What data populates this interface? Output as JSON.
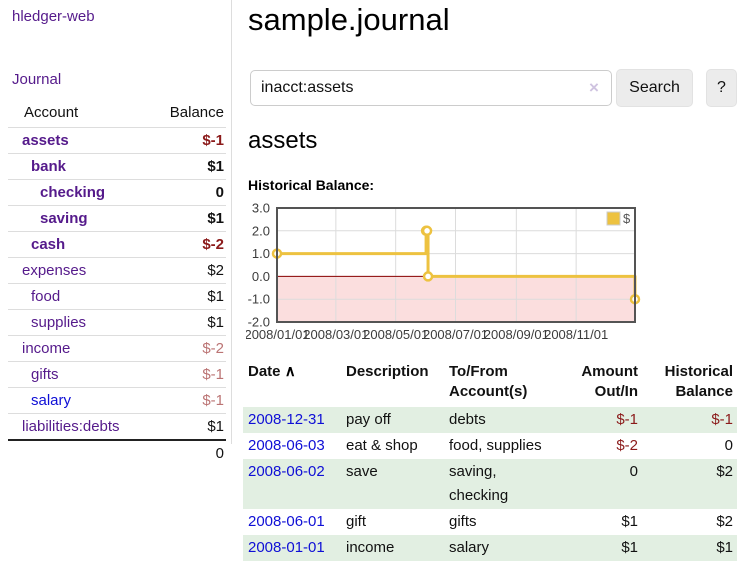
{
  "app": {
    "brand": "hledger-web",
    "nav_journal": "Journal"
  },
  "colors": {
    "link_purple": "#551a8b",
    "link_blue": "#0f0fd6",
    "negative": "#8b1a1a",
    "negative_soft": "#bb7474",
    "row_stripe_green": "#e2efe2",
    "series_gold": "#edc240",
    "below_zero_fill": "#fbdede",
    "zero_line": "#8b0000",
    "grid": "#dcdcdc",
    "plot_border": "#545454"
  },
  "sidebar": {
    "header": {
      "account": "Account",
      "balance": "Balance"
    },
    "accounts": [
      {
        "name": "assets",
        "balance": "$-1"
      },
      {
        "name": "bank",
        "balance": "$1"
      },
      {
        "name": "checking",
        "balance": "0"
      },
      {
        "name": "saving",
        "balance": "$1"
      },
      {
        "name": "cash",
        "balance": "$-2"
      },
      {
        "name": "expenses",
        "balance": "$2"
      },
      {
        "name": "food",
        "balance": "$1"
      },
      {
        "name": "supplies",
        "balance": "$1"
      },
      {
        "name": "income",
        "balance": "$-2"
      },
      {
        "name": "gifts",
        "balance": "$-1"
      },
      {
        "name": "salary",
        "balance": "$-1"
      },
      {
        "name": "liabilities:debts",
        "balance": "$1"
      }
    ],
    "total": "0"
  },
  "header": {
    "title": "sample.journal"
  },
  "search": {
    "value": "inacct:assets",
    "clear_icon": "×",
    "button_label": "Search",
    "help_label": "?"
  },
  "register": {
    "heading": "assets",
    "chart_label": "Historical Balance:"
  },
  "chart_data": {
    "type": "line",
    "title": "Historical Balance",
    "x_range": [
      "2008/01/01",
      "2008/12/31"
    ],
    "ylim": [
      -2.0,
      3.0
    ],
    "y_ticks": [
      "3.0",
      "2.0",
      "1.0",
      "0.0",
      "-1.0",
      "-2.0"
    ],
    "x_ticks": [
      "2008/01/01",
      "2008/03/01",
      "2008/05/01",
      "2008/07/01",
      "2008/09/01",
      "2008/11/01"
    ],
    "legend": [
      {
        "name": "$",
        "color": "#edc240"
      }
    ],
    "series": [
      {
        "name": "$",
        "color": "#edc240",
        "step": true,
        "points": [
          {
            "x": "2008/01/01",
            "y": 1
          },
          {
            "x": "2008/06/01",
            "y": 2
          },
          {
            "x": "2008/06/02",
            "y": 2
          },
          {
            "x": "2008/06/03",
            "y": 0
          },
          {
            "x": "2008/12/31",
            "y": -1
          }
        ]
      }
    ],
    "grid": true,
    "legend_position": "top-right",
    "marking_below_zero": true
  },
  "reg_table": {
    "sort_icon": "∧",
    "columns": {
      "date": {
        "l1": "Date",
        "l2": ""
      },
      "desc": {
        "l1": "Description",
        "l2": ""
      },
      "acct": {
        "l1": "To/From",
        "l2": "Account(s)"
      },
      "amt": {
        "l1": "Amount",
        "l2": "Out/In"
      },
      "bal": {
        "l1": "Historical",
        "l2": "Balance"
      }
    },
    "rows": [
      {
        "date": "2008-12-31",
        "desc": "pay off",
        "acct": "debts",
        "acct2": "",
        "amt": "$-1",
        "bal": "$-1"
      },
      {
        "date": "2008-06-03",
        "desc": "eat & shop",
        "acct": "food, supplies",
        "acct2": "",
        "amt": "$-2",
        "bal": "0"
      },
      {
        "date": "2008-06-02",
        "desc": "save",
        "acct": "saving,",
        "acct2": "checking",
        "amt": "0",
        "bal": "$2"
      },
      {
        "date": "2008-06-01",
        "desc": "gift",
        "acct": "gifts",
        "acct2": "",
        "amt": "$1",
        "bal": "$2"
      },
      {
        "date": "2008-01-01",
        "desc": "income",
        "acct": "salary",
        "acct2": "",
        "amt": "$1",
        "bal": "$1"
      }
    ]
  }
}
